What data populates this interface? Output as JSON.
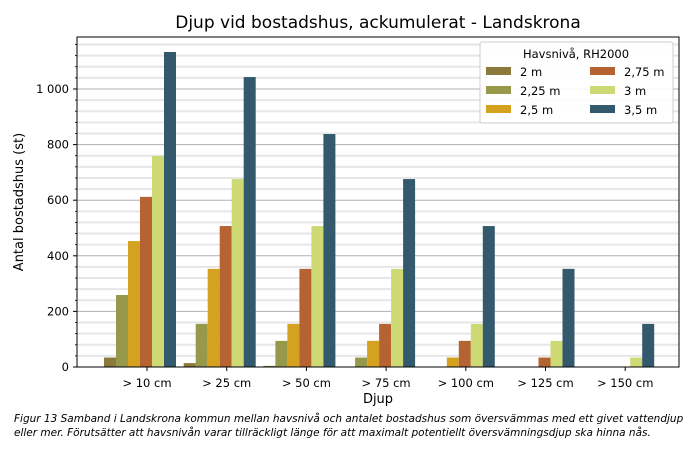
{
  "chart_data": {
    "type": "bar",
    "title": "Djup vid bostadshus, ackumulerat - Landskrona",
    "xlabel": "Djup",
    "ylabel": "Antal bostadshus (st)",
    "ylim": [
      0,
      1187
    ],
    "yticks": [
      0,
      200,
      400,
      600,
      800,
      1000
    ],
    "ytick_labels": [
      "0",
      "200",
      "400",
      "600",
      "800",
      "1 000"
    ],
    "minor_grid_step": 40,
    "grid": true,
    "categories": [
      "> 10 cm",
      "> 25 cm",
      "> 50 cm",
      "> 75 cm",
      "> 100 cm",
      "> 125 cm",
      "> 150 cm"
    ],
    "legend": {
      "title": "Havsnivå, RH2000",
      "placement": "top-right"
    },
    "series": [
      {
        "name": "2 m",
        "color": "#8b7a3c",
        "values": [
          34,
          14,
          4,
          0,
          0,
          0,
          0
        ]
      },
      {
        "name": "2,25 m",
        "color": "#96984a",
        "values": [
          259,
          155,
          94,
          34,
          0,
          0,
          0
        ]
      },
      {
        "name": "2,5 m",
        "color": "#d4a21f",
        "values": [
          453,
          353,
          155,
          94,
          34,
          0,
          0
        ]
      },
      {
        "name": "2,75 m",
        "color": "#b56332",
        "values": [
          612,
          507,
          353,
          155,
          94,
          34,
          0
        ]
      },
      {
        "name": "3 m",
        "color": "#cdd973",
        "values": [
          759,
          676,
          507,
          353,
          155,
          94,
          34
        ]
      },
      {
        "name": "3,5 m",
        "color": "#33596d",
        "values": [
          1133,
          1043,
          838,
          676,
          507,
          353,
          155
        ]
      }
    ]
  },
  "caption": "Figur 13 Samband i Landskrona kommun mellan havsnivå och antalet bostadshus som översvämmas med ett givet vattendjup eller mer. Förutsätter att havsnivån varar tillräckligt länge för att maximalt potentiellt översvämningsdjup ska hinna nås."
}
